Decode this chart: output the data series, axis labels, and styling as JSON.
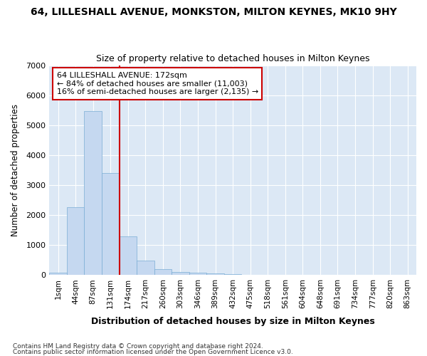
{
  "title": "64, LILLESHALL AVENUE, MONKSTON, MILTON KEYNES, MK10 9HY",
  "subtitle": "Size of property relative to detached houses in Milton Keynes",
  "xlabel": "Distribution of detached houses by size in Milton Keynes",
  "ylabel": "Number of detached properties",
  "footer_line1": "Contains HM Land Registry data © Crown copyright and database right 2024.",
  "footer_line2": "Contains public sector information licensed under the Open Government Licence v3.0.",
  "bar_labels": [
    "1sqm",
    "44sqm",
    "87sqm",
    "131sqm",
    "174sqm",
    "217sqm",
    "260sqm",
    "303sqm",
    "346sqm",
    "389sqm",
    "432sqm",
    "475sqm",
    "518sqm",
    "561sqm",
    "604sqm",
    "648sqm",
    "691sqm",
    "734sqm",
    "777sqm",
    "820sqm",
    "863sqm"
  ],
  "bar_values": [
    80,
    2280,
    5480,
    3420,
    1300,
    490,
    195,
    115,
    75,
    50,
    30,
    0,
    0,
    0,
    0,
    0,
    0,
    0,
    0,
    0,
    0
  ],
  "bar_color": "#c5d8f0",
  "bar_edge_color": "#7aadd4",
  "ylim": [
    0,
    7000
  ],
  "yticks": [
    0,
    1000,
    2000,
    3000,
    4000,
    5000,
    6000,
    7000
  ],
  "vline_x": 4.0,
  "vline_color": "#cc0000",
  "annotation_text": "64 LILLESHALL AVENUE: 172sqm\n← 84% of detached houses are smaller (11,003)\n16% of semi-detached houses are larger (2,135) →",
  "annotation_box_color": "#cc0000",
  "figure_bg_color": "#ffffff",
  "plot_bg_color": "#dce8f5"
}
